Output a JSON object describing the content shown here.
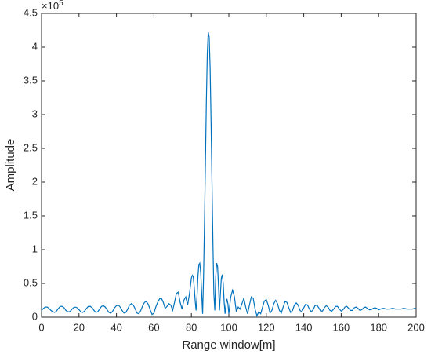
{
  "chart_data": {
    "type": "line",
    "xlabel": "Range window[m]",
    "ylabel": "Amplitude",
    "y_multiplier": {
      "base": "×10",
      "exponent": "5"
    },
    "color": "#0072bd",
    "grid": false,
    "xlim": [
      0,
      200
    ],
    "xticks": [
      0,
      20,
      40,
      60,
      80,
      100,
      120,
      140,
      160,
      180,
      200
    ],
    "ylim": [
      0,
      4.5
    ],
    "yticks": [
      0,
      0.5,
      1,
      1.5,
      2,
      2.5,
      3,
      3.5,
      4,
      4.5
    ],
    "x": [
      0,
      1,
      2,
      3,
      4,
      5,
      6,
      7,
      8,
      9,
      10,
      11,
      12,
      13,
      14,
      15,
      16,
      17,
      18,
      19,
      20,
      21,
      22,
      23,
      24,
      25,
      26,
      27,
      28,
      29,
      30,
      31,
      32,
      33,
      34,
      35,
      36,
      37,
      38,
      39,
      40,
      41,
      42,
      43,
      44,
      45,
      46,
      47,
      48,
      49,
      50,
      51,
      52,
      53,
      54,
      55,
      56,
      57,
      58,
      59,
      60,
      61,
      62,
      63,
      64,
      65,
      66,
      67,
      68,
      69,
      70,
      71,
      72,
      73,
      74,
      75,
      76,
      77,
      78,
      79,
      80,
      80.5,
      81,
      81.5,
      82,
      82.5,
      83,
      83.5,
      84,
      84.5,
      85,
      85.5,
      86,
      86.5,
      87,
      87.5,
      88,
      88.5,
      89,
      89.5,
      90,
      90.5,
      91,
      91.5,
      92,
      92.5,
      93,
      93.5,
      94,
      94.5,
      95,
      95.5,
      96,
      96.5,
      97,
      97.5,
      98,
      98.5,
      99,
      99.5,
      100,
      101,
      102,
      103,
      104,
      105,
      106,
      107,
      108,
      109,
      110,
      111,
      112,
      113,
      114,
      115,
      116,
      117,
      118,
      119,
      120,
      121,
      122,
      123,
      124,
      125,
      126,
      127,
      128,
      129,
      130,
      131,
      132,
      133,
      134,
      135,
      136,
      137,
      138,
      139,
      140,
      141,
      142,
      143,
      144,
      145,
      146,
      147,
      148,
      149,
      150,
      151,
      152,
      153,
      154,
      155,
      156,
      157,
      158,
      159,
      160,
      161,
      162,
      163,
      164,
      165,
      166,
      167,
      168,
      169,
      170,
      171,
      172,
      173,
      174,
      175,
      176,
      177,
      178,
      179,
      180,
      181,
      182,
      183,
      184,
      185,
      186,
      187,
      188,
      189,
      190,
      191,
      192,
      193,
      194,
      195,
      196,
      197,
      198,
      199,
      200
    ],
    "values": [
      0.1,
      0.13,
      0.15,
      0.15,
      0.13,
      0.1,
      0.08,
      0.07,
      0.09,
      0.13,
      0.16,
      0.16,
      0.14,
      0.1,
      0.08,
      0.08,
      0.11,
      0.14,
      0.15,
      0.14,
      0.11,
      0.08,
      0.07,
      0.09,
      0.13,
      0.16,
      0.16,
      0.14,
      0.1,
      0.07,
      0.08,
      0.12,
      0.16,
      0.17,
      0.15,
      0.11,
      0.07,
      0.06,
      0.09,
      0.14,
      0.17,
      0.18,
      0.15,
      0.1,
      0.06,
      0.07,
      0.12,
      0.18,
      0.2,
      0.18,
      0.12,
      0.06,
      0.05,
      0.1,
      0.17,
      0.22,
      0.23,
      0.19,
      0.11,
      0.04,
      0.06,
      0.15,
      0.22,
      0.27,
      0.28,
      0.22,
      0.13,
      0.16,
      0.2,
      0.18,
      0.1,
      0.22,
      0.35,
      0.37,
      0.22,
      0.12,
      0.25,
      0.3,
      0.18,
      0.35,
      0.58,
      0.62,
      0.6,
      0.45,
      0.25,
      0.1,
      0.3,
      0.6,
      0.78,
      0.8,
      0.65,
      0.35,
      0.05,
      0.6,
      1.4,
      2.3,
      3.2,
      3.9,
      4.22,
      4.15,
      3.7,
      2.9,
      2.0,
      1.1,
      0.35,
      0.1,
      0.6,
      0.8,
      0.75,
      0.45,
      0.1,
      0.35,
      0.58,
      0.63,
      0.5,
      0.22,
      0.05,
      0.2,
      0.27,
      0.2,
      0.05,
      0.3,
      0.4,
      0.3,
      0.08,
      0.15,
      0.12,
      0.2,
      0.28,
      0.15,
      0.05,
      0.18,
      0.3,
      0.28,
      0.12,
      0.02,
      0.08,
      0.05,
      0.15,
      0.24,
      0.26,
      0.18,
      0.06,
      0.1,
      0.2,
      0.25,
      0.2,
      0.1,
      0.06,
      0.15,
      0.23,
      0.22,
      0.14,
      0.07,
      0.1,
      0.18,
      0.21,
      0.18,
      0.1,
      0.08,
      0.14,
      0.19,
      0.18,
      0.12,
      0.08,
      0.11,
      0.17,
      0.18,
      0.14,
      0.09,
      0.09,
      0.14,
      0.17,
      0.15,
      0.1,
      0.09,
      0.12,
      0.16,
      0.16,
      0.12,
      0.09,
      0.11,
      0.15,
      0.16,
      0.13,
      0.1,
      0.1,
      0.14,
      0.15,
      0.13,
      0.1,
      0.11,
      0.14,
      0.15,
      0.13,
      0.11,
      0.11,
      0.13,
      0.14,
      0.13,
      0.11,
      0.12,
      0.13,
      0.13,
      0.12,
      0.12,
      0.12,
      0.13,
      0.13,
      0.12,
      0.12,
      0.12,
      0.12,
      0.13,
      0.13,
      0.12,
      0.12,
      0.12,
      0.12,
      0.13,
      0.13
    ]
  }
}
